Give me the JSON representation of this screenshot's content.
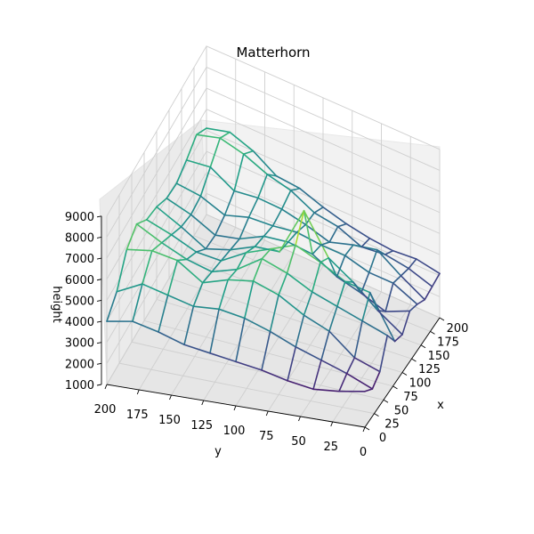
{
  "chart_data": {
    "type": "surface",
    "title": "Matterhorn",
    "xlabel": "x",
    "ylabel": "y",
    "zlabel": "height",
    "xlim": [
      0,
      200
    ],
    "ylim": [
      0,
      200
    ],
    "zlim": [
      1000,
      9000
    ],
    "x_ticks": [
      "0",
      "25",
      "50",
      "75",
      "100",
      "125",
      "150",
      "175",
      "200"
    ],
    "y_ticks": [
      "200",
      "175",
      "150",
      "125",
      "100",
      "75",
      "50",
      "25",
      "0"
    ],
    "z_ticks": [
      "1000",
      "2000",
      "3000",
      "4000",
      "5000",
      "6000",
      "7000",
      "8000",
      "9000"
    ],
    "colormap": "viridis",
    "grid": true,
    "x": [
      0,
      20,
      40,
      60,
      80,
      100,
      120,
      140,
      160,
      180,
      200
    ],
    "y": [
      0,
      20,
      40,
      60,
      80,
      100,
      120,
      140,
      160,
      180,
      200
    ],
    "z": [
      [
        2700,
        2300,
        2600,
        3800,
        3000,
        2800,
        3400,
        3200,
        2900,
        3000,
        3100
      ],
      [
        2500,
        2800,
        3000,
        4200,
        5000,
        3600,
        3000,
        3800,
        3600,
        3400,
        3300
      ],
      [
        2400,
        3200,
        4000,
        4600,
        5200,
        4600,
        3500,
        3900,
        4400,
        3600,
        3200
      ],
      [
        2600,
        3600,
        4500,
        5000,
        5800,
        5400,
        3900,
        4300,
        4200,
        3500,
        3300
      ],
      [
        2900,
        4100,
        5200,
        5600,
        6300,
        7300,
        4600,
        4400,
        3900,
        4000,
        3500
      ],
      [
        3100,
        4500,
        5600,
        6000,
        5800,
        5000,
        4800,
        4600,
        4300,
        4200,
        3800
      ],
      [
        3300,
        4700,
        5400,
        5200,
        5300,
        4900,
        4700,
        4500,
        4600,
        4800,
        4200
      ],
      [
        3500,
        4600,
        5000,
        4800,
        4600,
        4400,
        4200,
        4500,
        4700,
        5100,
        4300
      ],
      [
        3900,
        4900,
        5800,
        5100,
        4700,
        4100,
        4000,
        4200,
        4600,
        5600,
        5000
      ],
      [
        4200,
        5200,
        6000,
        5600,
        5200,
        4800,
        4600,
        4700,
        5300,
        5900,
        5400
      ],
      [
        4000,
        4600,
        5800,
        6200,
        5600,
        5400,
        5000,
        4900,
        5200,
        5600,
        5100
      ]
    ]
  }
}
